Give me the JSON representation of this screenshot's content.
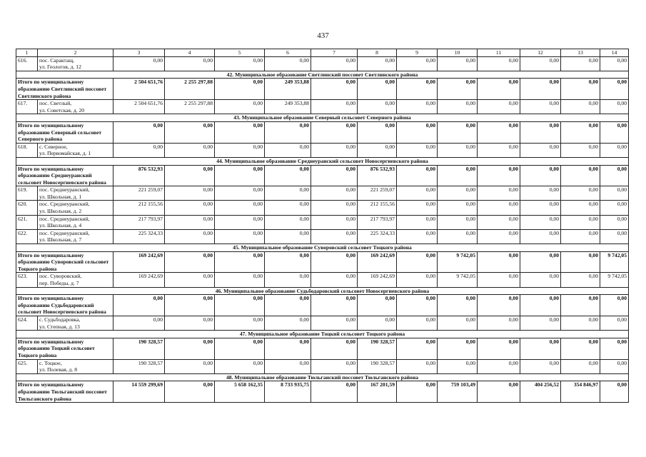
{
  "page_number": "437",
  "header": [
    "1",
    "2",
    "3",
    "4",
    "5",
    "6",
    "7",
    "8",
    "9",
    "10",
    "11",
    "12",
    "13",
    "14"
  ],
  "rows": [
    {
      "number": "616.",
      "address": [
        "пос. Сарактащ,",
        "ул. Геологов, д. 12"
      ],
      "values": [
        "0,00",
        "0,00",
        "0,00",
        "0,00",
        "0,00",
        "0,00",
        "0,00",
        "0,00",
        "0,00",
        "0,00",
        "0,00",
        "0,00"
      ]
    },
    {
      "section": "42. Муниципальное образование Светлинский поссовет Светлинского района"
    },
    {
      "total_label": "Итого по муниципальному образованию Светлинский поссовет Светлинского района",
      "values": [
        "2 504 651,76",
        "2 255 297,88",
        "0,00",
        "249 353,88",
        "0,00",
        "0,00",
        "0,00",
        "0,00",
        "0,00",
        "0,00",
        "0,00",
        "0,00"
      ]
    },
    {
      "number": "617.",
      "address": [
        "пос. Светлый,",
        "ул. Советская, д. 20"
      ],
      "values": [
        "2 504 651,76",
        "2 255 297,88",
        "0,00",
        "249 353,88",
        "0,00",
        "0,00",
        "0,00",
        "0,00",
        "0,00",
        "0,00",
        "0,00",
        "0,00"
      ]
    },
    {
      "section": "43. Муниципальное образование Северный сельсовет Северного района"
    },
    {
      "total_label": "Итого по муниципальному образованию Северный сельсовет Северного района",
      "values": [
        "0,00",
        "0,00",
        "0,00",
        "0,00",
        "0,00",
        "0,00",
        "0,00",
        "0,00",
        "0,00",
        "0,00",
        "0,00",
        "0,00"
      ]
    },
    {
      "number": "618.",
      "address": [
        "с. Северное,",
        "ул. Первомайская, д. 1"
      ],
      "values": [
        "0,00",
        "0,00",
        "0,00",
        "0,00",
        "0,00",
        "0,00",
        "0,00",
        "0,00",
        "0,00",
        "0,00",
        "0,00",
        "0,00"
      ]
    },
    {
      "section": "44. Муниципальное образование Среднеуранский сельсовет Новосергиевского района"
    },
    {
      "total_label": "Итого по муниципальному образованию Среднеуранский сельсовет Новосергиевского района",
      "values": [
        "876 532,93",
        "0,00",
        "0,00",
        "0,00",
        "0,00",
        "876 532,93",
        "0,00",
        "0,00",
        "0,00",
        "0,00",
        "0,00",
        "0,00"
      ]
    },
    {
      "number": "619.",
      "address": [
        "пос. Среднеуранский,",
        "ул. Школьная, д. 1"
      ],
      "values": [
        "221 259,07",
        "0,00",
        "0,00",
        "0,00",
        "0,00",
        "221 259,07",
        "0,00",
        "0,00",
        "0,00",
        "0,00",
        "0,00",
        "0,00"
      ]
    },
    {
      "number": "620.",
      "address": [
        "пос. Среднеуранский,",
        "ул. Школьная, д. 2"
      ],
      "values": [
        "212 155,56",
        "0,00",
        "0,00",
        "0,00",
        "0,00",
        "212 155,56",
        "0,00",
        "0,00",
        "0,00",
        "0,00",
        "0,00",
        "0,00"
      ]
    },
    {
      "number": "621.",
      "address": [
        "пос. Среднеуранский,",
        "ул. Школьная, д. 4"
      ],
      "values": [
        "217 793,97",
        "0,00",
        "0,00",
        "0,00",
        "0,00",
        "217 793,97",
        "0,00",
        "0,00",
        "0,00",
        "0,00",
        "0,00",
        "0,00"
      ]
    },
    {
      "number": "622.",
      "address": [
        "пос. Среднеуранский,",
        "ул. Школьная, д. 7"
      ],
      "values": [
        "225 324,33",
        "0,00",
        "0,00",
        "0,00",
        "0,00",
        "225 324,33",
        "0,00",
        "0,00",
        "0,00",
        "0,00",
        "0,00",
        "0,00"
      ]
    },
    {
      "section": "45. Муниципальное образование Суворовский сельсовет Тоцкого района"
    },
    {
      "total_label": "Итого по муниципальному образованию Суворовский сельсовет Тоцкого района",
      "values": [
        "169 242,69",
        "0,00",
        "0,00",
        "0,00",
        "0,00",
        "169 242,69",
        "0,00",
        "9 742,05",
        "0,00",
        "0,00",
        "0,00",
        "9 742,05"
      ]
    },
    {
      "number": "623.",
      "address": [
        "пос. Суворовский,",
        "пер. Победы, д. 7"
      ],
      "values": [
        "169 242,69",
        "0,00",
        "0,00",
        "0,00",
        "0,00",
        "169 242,69",
        "0,00",
        "9 742,05",
        "0,00",
        "0,00",
        "0,00",
        "9 742,05"
      ]
    },
    {
      "section": "46. Муниципальное образование Судьбодаровский сельсовет Новосергиевского района"
    },
    {
      "total_label": "Итого по муниципальному образованию Судьбодаровский сельсовет Новосергиевского района",
      "values": [
        "0,00",
        "0,00",
        "0,00",
        "0,00",
        "0,00",
        "0,00",
        "0,00",
        "0,00",
        "0,00",
        "0,00",
        "0,00",
        "0,00"
      ]
    },
    {
      "number": "624.",
      "address": [
        "с. Судьбодаровка,",
        "ул. Степная, д. 13"
      ],
      "values": [
        "0,00",
        "0,00",
        "0,00",
        "0,00",
        "0,00",
        "0,00",
        "0,00",
        "0,00",
        "0,00",
        "0,00",
        "0,00",
        "0,00"
      ]
    },
    {
      "section": "47. Муниципальное образование Тоцкий сельсовет Тоцкого района"
    },
    {
      "total_label": "Итого по муниципальному образованию Тоцкий сельсовет Тоцкого района",
      "values": [
        "190 328,57",
        "0,00",
        "0,00",
        "0,00",
        "0,00",
        "190 328,57",
        "0,00",
        "0,00",
        "0,00",
        "0,00",
        "0,00",
        "0,00"
      ]
    },
    {
      "number": "625.",
      "address": [
        "с. Тоцкое,",
        "ул. Полевая, д. 8"
      ],
      "values": [
        "190 328,57",
        "0,00",
        "0,00",
        "0,00",
        "0,00",
        "190 328,57",
        "0,00",
        "0,00",
        "0,00",
        "0,00",
        "0,00",
        "0,00"
      ]
    },
    {
      "section": "48. Муниципальное образование Тюльганский поссовет Тюльганского района"
    },
    {
      "total_label": "Итого по муниципальному образованию Тюльганский поссовет Тюльганского района",
      "values": [
        "14 559 299,69",
        "0,00",
        "5 658 162,35",
        "8 733 935,75",
        "0,00",
        "167 201,59",
        "0,00",
        "759 103,49",
        "0,00",
        "404 256,52",
        "354 846,97",
        "0,00"
      ]
    }
  ]
}
